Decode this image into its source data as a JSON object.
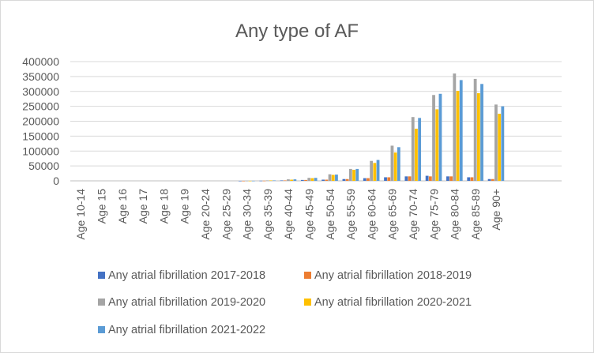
{
  "chart_data": {
    "type": "bar",
    "title": "Any type of AF",
    "xlabel": "",
    "ylabel": "",
    "ylim": [
      0,
      400000
    ],
    "yticks": [
      "0",
      "50000",
      "100000",
      "150000",
      "200000",
      "250000",
      "300000",
      "350000",
      "400000"
    ],
    "grid": true,
    "legend_position": "bottom",
    "categories": [
      "Age 10-14",
      "Age 15",
      "Age 16",
      "Age 17",
      "Age 18",
      "Age 19",
      "Age 20-24",
      "Age 25-29",
      "Age 30-34",
      "Age 35-39",
      "Age 40-44",
      "Age 45-49",
      "Age 50-54",
      "Age 55-59",
      "Age 60-64",
      "Age 65-69",
      "Age 70-74",
      "Age 75-79",
      "Age 80-84",
      "Age 85-89",
      "Age 90+"
    ],
    "series": [
      {
        "name": "Any atrial fibrillation 2017-2018",
        "color": "#4472C4",
        "values": [
          0,
          0,
          0,
          0,
          0,
          0,
          0,
          0,
          100,
          500,
          1500,
          3000,
          4000,
          6000,
          9000,
          12000,
          15000,
          17000,
          15000,
          12000,
          6000
        ]
      },
      {
        "name": "Any atrial fibrillation 2018-2019",
        "color": "#ED7D31",
        "values": [
          0,
          0,
          0,
          0,
          0,
          0,
          0,
          0,
          100,
          500,
          1500,
          3000,
          4000,
          6000,
          9000,
          12000,
          15000,
          15000,
          15000,
          12000,
          6000
        ]
      },
      {
        "name": "Any atrial fibrillation 2019-2020",
        "color": "#A5A5A5",
        "values": [
          0,
          0,
          0,
          0,
          0,
          0,
          0,
          0,
          200,
          1500,
          5000,
          10000,
          22000,
          40000,
          67000,
          118000,
          214000,
          288000,
          360000,
          342000,
          256000
        ]
      },
      {
        "name": "Any atrial fibrillation 2020-2021",
        "color": "#FFC000",
        "values": [
          0,
          0,
          0,
          0,
          0,
          0,
          0,
          0,
          200,
          1500,
          4000,
          9000,
          20000,
          37000,
          60000,
          95000,
          175000,
          240000,
          302000,
          294000,
          225000
        ]
      },
      {
        "name": "Any atrial fibrillation 2021-2022",
        "color": "#5B9BD5",
        "values": [
          0,
          0,
          0,
          0,
          0,
          0,
          0,
          0,
          200,
          1500,
          5000,
          10000,
          21000,
          40000,
          70000,
          113000,
          211000,
          292000,
          338000,
          325000,
          250000
        ]
      }
    ]
  }
}
